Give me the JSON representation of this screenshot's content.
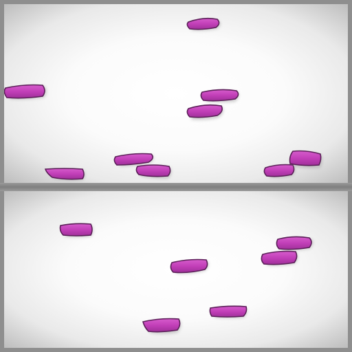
{
  "scene": {
    "description_color_object": "#c23fb8",
    "description_color_outline": "#5a1f57",
    "description_color_shadow": "#999999"
  }
}
